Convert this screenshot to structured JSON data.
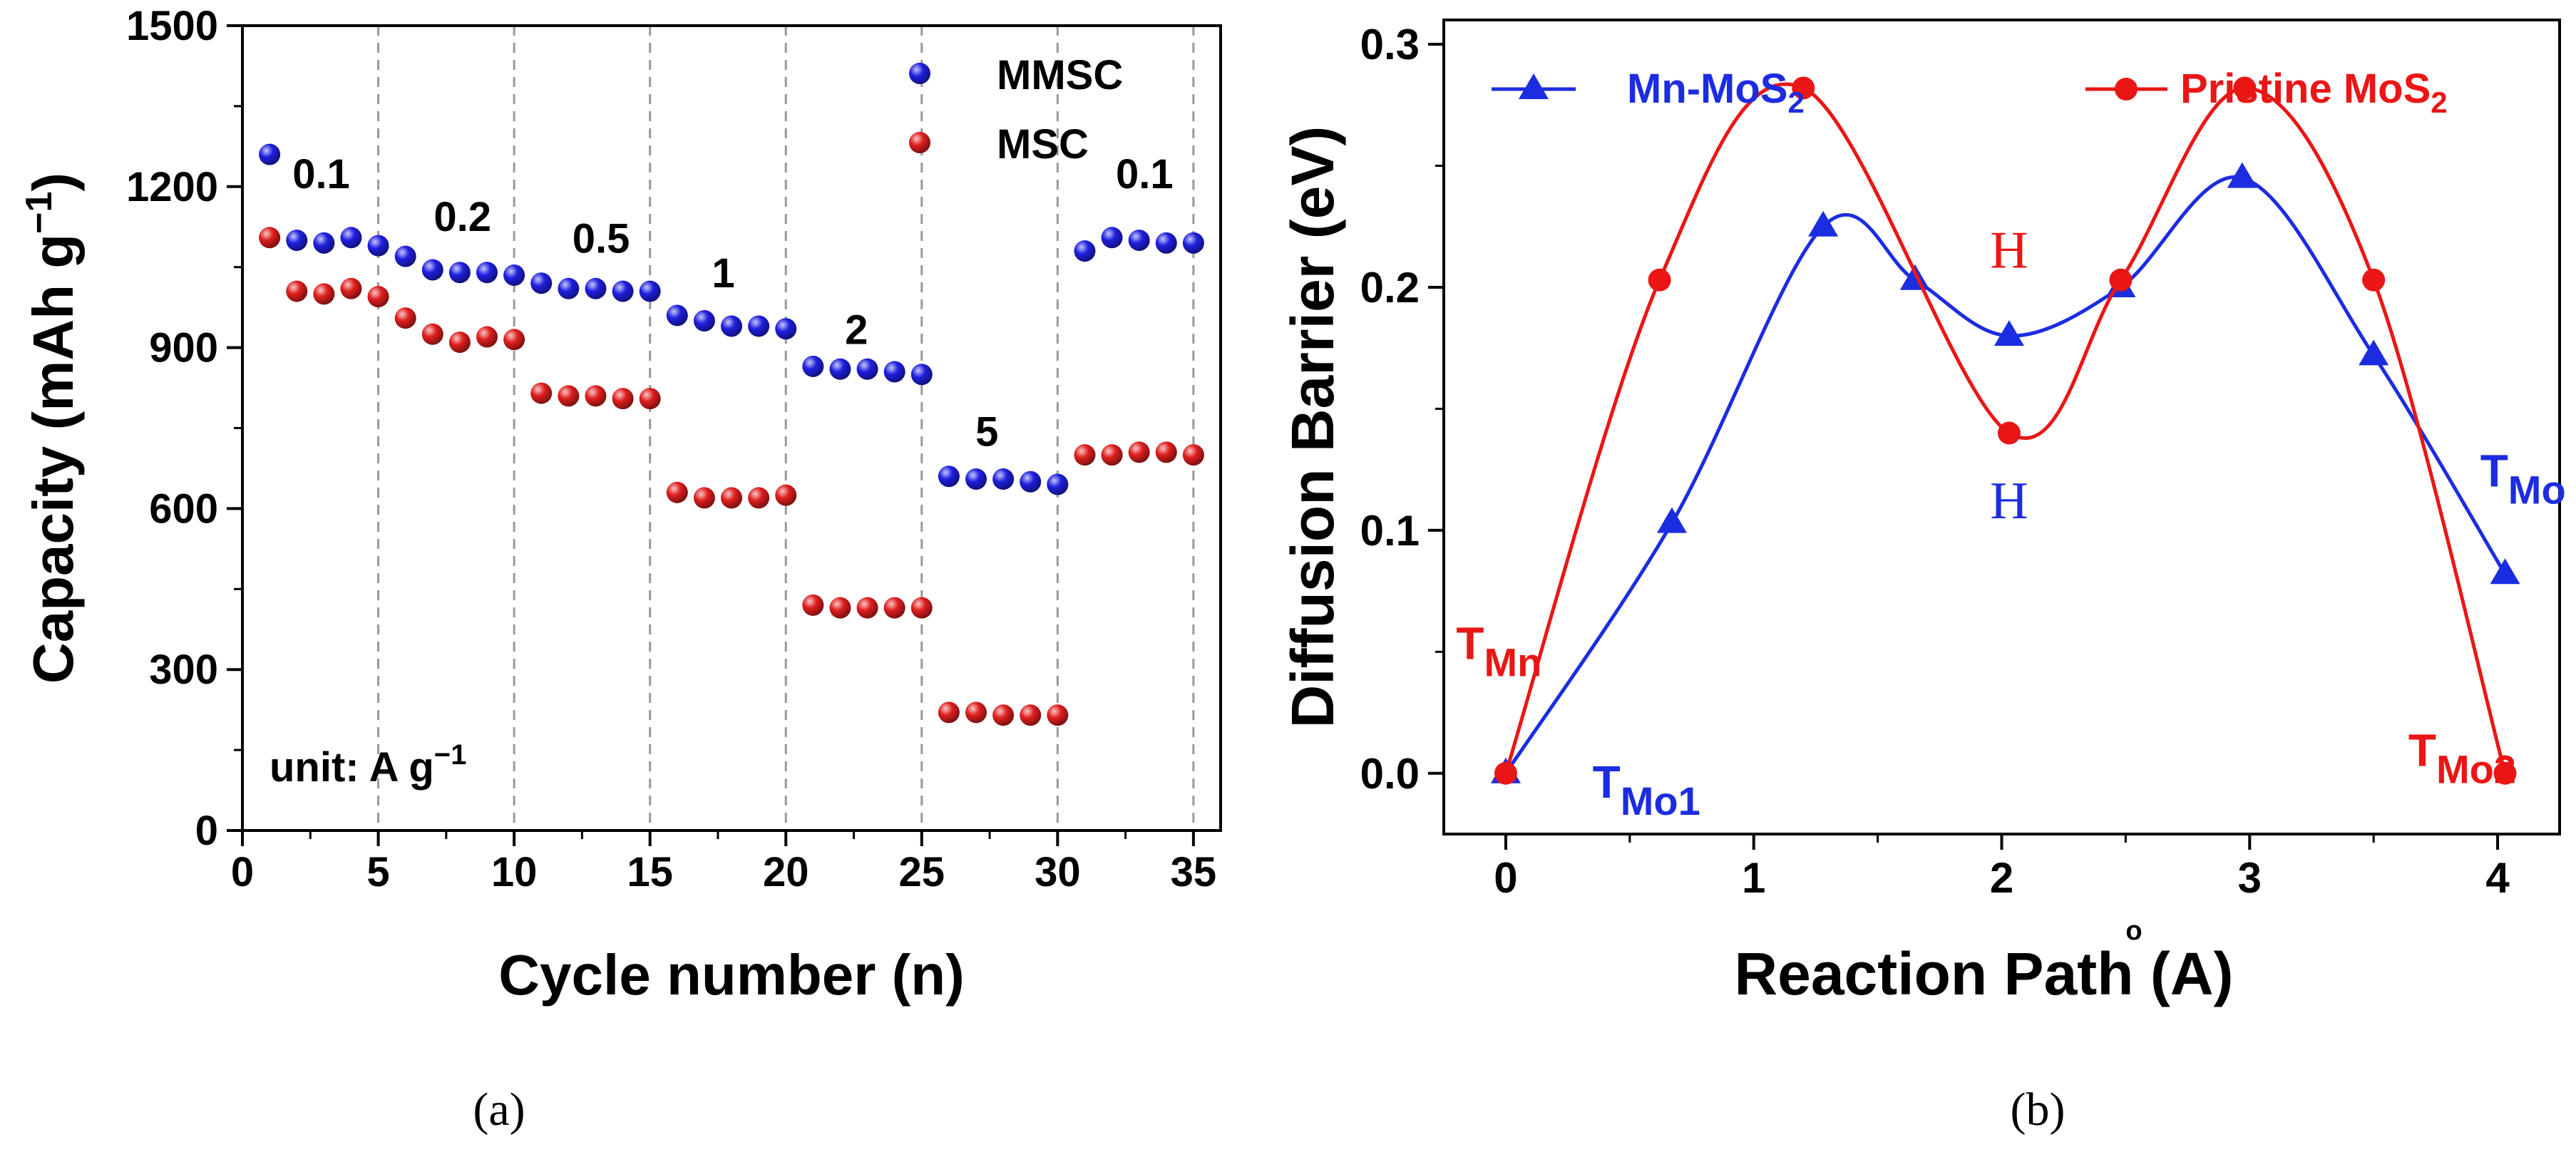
{
  "colors": {
    "mmsc": "#1f1fe0",
    "msc": "#e01e1e",
    "mn_mos2": "#1c2ce0",
    "pristine_mos2": "#ea1616",
    "axis": "#000000",
    "grid": "#999999"
  },
  "chart_data": [
    {
      "type": "scatter",
      "panel_label": "(a)",
      "xlabel": "Cycle number (n)",
      "ylabel": "Capacity (mAh g",
      "ylabel_sup": "−1",
      "ylabel_close": ")",
      "xlim": [
        0,
        36
      ],
      "ylim": [
        0,
        1500
      ],
      "xticks": [
        0,
        5,
        10,
        15,
        20,
        25,
        30,
        35
      ],
      "yticks": [
        0,
        300,
        600,
        900,
        1200,
        1500
      ],
      "xtick_labels": [
        "0",
        "5",
        "10",
        "15",
        "20",
        "25",
        "30",
        "35"
      ],
      "ytick_labels": [
        "0",
        "300",
        "600",
        "900",
        "1200",
        "1500"
      ],
      "grid_x": [
        5,
        10,
        15,
        20,
        25,
        30,
        35
      ],
      "legend": [
        "MMSC",
        "MSC"
      ],
      "series": [
        {
          "name": "MMSC",
          "x": [
            1,
            2,
            3,
            4,
            5,
            6,
            7,
            8,
            9,
            10,
            11,
            12,
            13,
            14,
            15,
            16,
            17,
            18,
            19,
            20,
            21,
            22,
            23,
            24,
            25,
            26,
            27,
            28,
            29,
            30,
            31,
            32,
            33,
            34,
            35
          ],
          "values": [
            1260,
            1100,
            1095,
            1105,
            1090,
            1070,
            1045,
            1040,
            1040,
            1035,
            1020,
            1010,
            1010,
            1005,
            1005,
            960,
            950,
            940,
            940,
            935,
            865,
            860,
            860,
            855,
            850,
            660,
            655,
            655,
            650,
            645,
            1080,
            1105,
            1100,
            1095,
            1095
          ]
        },
        {
          "name": "MSC",
          "x": [
            1,
            2,
            3,
            4,
            5,
            6,
            7,
            8,
            9,
            10,
            11,
            12,
            13,
            14,
            15,
            16,
            17,
            18,
            19,
            20,
            21,
            22,
            23,
            24,
            25,
            26,
            27,
            28,
            29,
            30,
            31,
            32,
            33,
            34,
            35
          ],
          "values": [
            1105,
            1005,
            1000,
            1010,
            995,
            955,
            925,
            910,
            920,
            915,
            815,
            810,
            810,
            805,
            805,
            630,
            620,
            620,
            620,
            625,
            420,
            415,
            415,
            415,
            415,
            220,
            220,
            215,
            215,
            215,
            700,
            700,
            705,
            705,
            700
          ]
        }
      ],
      "rate_labels": [
        {
          "text": "0.1",
          "x": 2.9,
          "y": 1225
        },
        {
          "text": "0.2",
          "x": 8.1,
          "y": 1145
        },
        {
          "text": "0.5",
          "x": 13.2,
          "y": 1105
        },
        {
          "text": "1",
          "x": 17.7,
          "y": 1040
        },
        {
          "text": "2",
          "x": 22.6,
          "y": 935
        },
        {
          "text": "5",
          "x": 27.4,
          "y": 745
        },
        {
          "text": "0.1",
          "x": 33.2,
          "y": 1225
        }
      ],
      "unit_label": "unit: A g",
      "unit_sup": "−1"
    },
    {
      "type": "line",
      "panel_label": "(b)",
      "xlabel": "Reaction Path (Å)",
      "xlabel_main": "Reaction Path (",
      "xlabel_unit": "A",
      "xlabel_ring": "o",
      "xlabel_close": ")",
      "ylabel": "Diffusion Barrier (eV)",
      "xlim": [
        -0.25,
        4.25
      ],
      "ylim": [
        -0.025,
        0.31
      ],
      "xticks": [
        0,
        1,
        2,
        3,
        4
      ],
      "yticks": [
        0.0,
        0.1,
        0.2,
        0.3
      ],
      "xtick_labels": [
        "0",
        "1",
        "2",
        "3",
        "4"
      ],
      "ytick_labels": [
        "0.0",
        "0.1",
        "0.2",
        "0.3"
      ],
      "series": [
        {
          "name": "Mn-MoS",
          "name_sub": "2",
          "marker": "triangle",
          "x": [
            0,
            0.67,
            1.28,
            1.65,
            2.03,
            2.48,
            2.97,
            3.5,
            4.03
          ],
          "values": [
            0.0,
            0.103,
            0.225,
            0.203,
            0.18,
            0.2,
            0.245,
            0.172,
            0.082
          ]
        },
        {
          "name": "Pristine MoS",
          "name_sub": "2",
          "marker": "circle",
          "x": [
            0,
            0.62,
            1.2,
            2.03,
            2.48,
            2.98,
            3.5,
            4.03
          ],
          "values": [
            0.0,
            0.203,
            0.282,
            0.14,
            0.203,
            0.282,
            0.203,
            0.0
          ]
        }
      ],
      "annotations": [
        {
          "name": "site-label-h-red",
          "main": "H",
          "sub": "",
          "x": 2.03,
          "y": 0.208,
          "color": "red",
          "serif": true
        },
        {
          "name": "site-label-h-blue",
          "main": "H",
          "sub": "",
          "x": 2.03,
          "y": 0.105,
          "color": "blue",
          "serif": true
        },
        {
          "name": "site-label-tmn",
          "main": "T",
          "sub": "Mn",
          "x": -0.2,
          "y": 0.047,
          "color": "red",
          "serif": false
        },
        {
          "name": "site-label-tmo1",
          "main": "T",
          "sub": "Mo1",
          "x": 0.35,
          "y": -0.01,
          "color": "blue",
          "serif": false
        },
        {
          "name": "site-label-tmo2",
          "main": "T",
          "sub": "Mo2",
          "x": 3.64,
          "y": 0.003,
          "color": "red",
          "serif": false
        },
        {
          "name": "site-label-tmo",
          "main": "T",
          "sub": "Mo",
          "x": 3.93,
          "y": 0.118,
          "color": "blue",
          "serif": false
        }
      ]
    }
  ]
}
